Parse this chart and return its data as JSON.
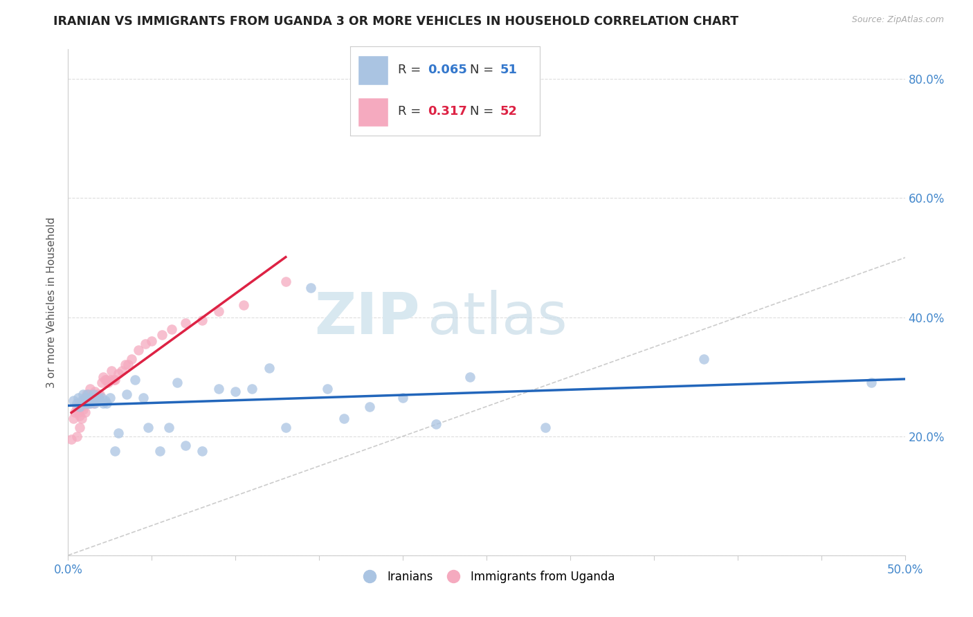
{
  "title": "IRANIAN VS IMMIGRANTS FROM UGANDA 3 OR MORE VEHICLES IN HOUSEHOLD CORRELATION CHART",
  "source": "Source: ZipAtlas.com",
  "ylabel": "3 or more Vehicles in Household",
  "xlim": [
    0.0,
    0.5
  ],
  "ylim": [
    0.0,
    0.85
  ],
  "iranians_R": "0.065",
  "iranians_N": "51",
  "uganda_R": "0.317",
  "uganda_N": "52",
  "iranians_color": "#aac4e2",
  "uganda_color": "#f5aabf",
  "iranians_line_color": "#2266bb",
  "uganda_line_color": "#dd2244",
  "diagonal_color": "#cccccc",
  "background_color": "#ffffff",
  "watermark_zip": "ZIP",
  "watermark_atlas": "atlas",
  "iranians_x": [
    0.003,
    0.005,
    0.006,
    0.007,
    0.008,
    0.009,
    0.01,
    0.01,
    0.011,
    0.012,
    0.012,
    0.013,
    0.013,
    0.014,
    0.015,
    0.015,
    0.016,
    0.017,
    0.018,
    0.019,
    0.02,
    0.021,
    0.022,
    0.023,
    0.025,
    0.028,
    0.03,
    0.035,
    0.04,
    0.045,
    0.048,
    0.055,
    0.06,
    0.065,
    0.07,
    0.08,
    0.09,
    0.1,
    0.11,
    0.12,
    0.13,
    0.145,
    0.155,
    0.165,
    0.18,
    0.2,
    0.22,
    0.24,
    0.285,
    0.38,
    0.48
  ],
  "iranians_y": [
    0.26,
    0.255,
    0.265,
    0.25,
    0.26,
    0.27,
    0.255,
    0.265,
    0.26,
    0.255,
    0.27,
    0.26,
    0.255,
    0.265,
    0.26,
    0.27,
    0.255,
    0.26,
    0.265,
    0.26,
    0.265,
    0.255,
    0.26,
    0.255,
    0.265,
    0.175,
    0.205,
    0.27,
    0.295,
    0.265,
    0.215,
    0.175,
    0.215,
    0.29,
    0.185,
    0.175,
    0.28,
    0.275,
    0.28,
    0.315,
    0.215,
    0.45,
    0.28,
    0.23,
    0.25,
    0.265,
    0.22,
    0.3,
    0.215,
    0.33,
    0.29
  ],
  "uganda_x": [
    0.002,
    0.003,
    0.004,
    0.005,
    0.005,
    0.006,
    0.007,
    0.007,
    0.008,
    0.008,
    0.009,
    0.009,
    0.01,
    0.01,
    0.011,
    0.011,
    0.012,
    0.012,
    0.013,
    0.013,
    0.014,
    0.014,
    0.015,
    0.015,
    0.016,
    0.017,
    0.018,
    0.019,
    0.02,
    0.021,
    0.022,
    0.023,
    0.024,
    0.025,
    0.026,
    0.027,
    0.028,
    0.03,
    0.032,
    0.034,
    0.036,
    0.038,
    0.042,
    0.046,
    0.05,
    0.056,
    0.062,
    0.07,
    0.08,
    0.09,
    0.105,
    0.13
  ],
  "uganda_y": [
    0.195,
    0.23,
    0.24,
    0.25,
    0.2,
    0.24,
    0.215,
    0.235,
    0.25,
    0.23,
    0.26,
    0.245,
    0.255,
    0.24,
    0.27,
    0.255,
    0.265,
    0.255,
    0.28,
    0.255,
    0.26,
    0.27,
    0.26,
    0.255,
    0.275,
    0.27,
    0.27,
    0.27,
    0.29,
    0.3,
    0.295,
    0.295,
    0.29,
    0.295,
    0.31,
    0.295,
    0.295,
    0.305,
    0.31,
    0.32,
    0.32,
    0.33,
    0.345,
    0.355,
    0.36,
    0.37,
    0.38,
    0.39,
    0.395,
    0.41,
    0.42,
    0.46
  ]
}
